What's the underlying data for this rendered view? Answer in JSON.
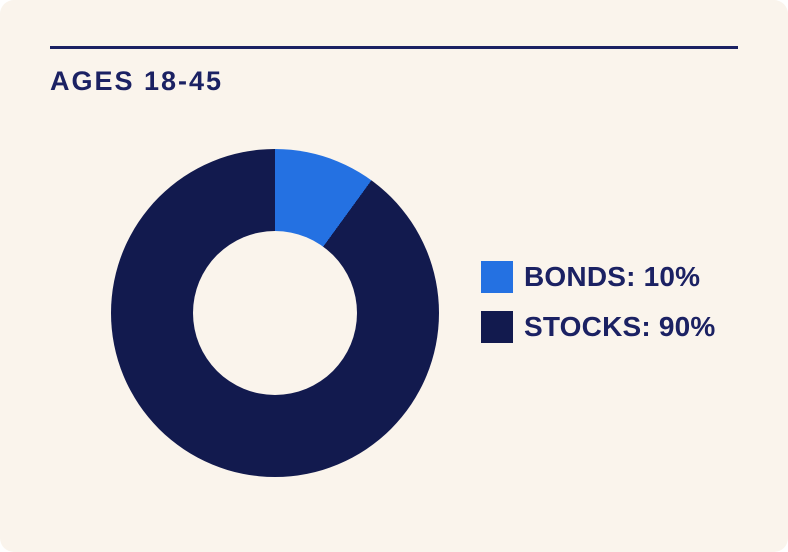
{
  "card": {
    "title": "AGES 18-45"
  },
  "colors": {
    "card_background": "#FAF4EC",
    "accent_blue": "#2471E2",
    "navy": "#121A4E",
    "text_navy": "#1B2163"
  },
  "chart_data": {
    "type": "pie",
    "variant": "donut",
    "title": "AGES 18-45",
    "labels": [
      "BONDS",
      "STOCKS"
    ],
    "values": [
      10,
      90
    ],
    "unit": "%",
    "colors": [
      "#2471E2",
      "#121A4E"
    ],
    "start_angle_deg": 0,
    "direction": "clockwise",
    "inner_radius_ratio": 0.5,
    "hole_color": "#FAF4EC",
    "legend_position": "right"
  },
  "legend": {
    "items": [
      {
        "label": "BONDS",
        "value_pct": 10,
        "text": "BONDS: 10%",
        "color": "#2471E2"
      },
      {
        "label": "STOCKS",
        "value_pct": 90,
        "text": "STOCKS: 90%",
        "color": "#121A4E"
      }
    ]
  }
}
